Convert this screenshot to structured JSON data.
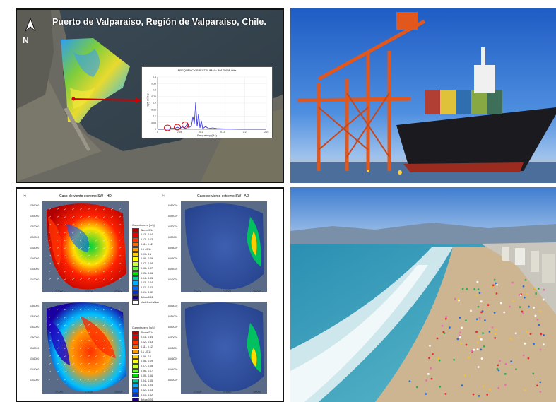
{
  "top_left": {
    "title": "Puerto de Valparaíso, Región de Valparaíso, Chile.",
    "north_label": "N",
    "spectrum": {
      "title": "FREQUENCY SPECTRUM: f = 3917569F 0Hz",
      "xlabel": "Frequency (Hz)",
      "ylabel": "S(f) m²/Hz",
      "yticks": [
        "0.4",
        "0.35",
        "0.3",
        "0.25",
        "0.2",
        "0.15",
        "0.1",
        "0.05",
        "0"
      ],
      "xticks": [
        "0",
        "0.05",
        "0.1",
        "0.15",
        "0.2",
        "0.25"
      ]
    }
  },
  "bottom_left": {
    "maps": [
      {
        "label": "(a)",
        "title": "Caso de viento extremo SW - HD"
      },
      {
        "label": "(b)",
        "title": "Caso de viento extremo SW - AD"
      }
    ],
    "legend_title": "Current speed [m/s]",
    "legend_items": [
      "Above 0.14",
      "0.13 - 0.14",
      "0.12 - 0.13",
      "0.11 - 0.12",
      "0.1 - 0.11",
      "0.09 - 0.1",
      "0.08 - 0.09",
      "0.07 - 0.08",
      "0.06 - 0.07",
      "0.05 - 0.06",
      "0.04 - 0.05",
      "0.03 - 0.04",
      "0.02 - 0.03",
      "0.01 - 0.02",
      "Below 0.01",
      "Undefined Value"
    ],
    "legend_colors": [
      "#b00000",
      "#e00000",
      "#ff3300",
      "#ff6600",
      "#ff9900",
      "#ffcc00",
      "#ffff00",
      "#ccff33",
      "#66ff33",
      "#00dd00",
      "#00cc99",
      "#00aaff",
      "#0066ff",
      "#0033cc",
      "#1a0080",
      "#ffffff"
    ],
    "yticks": [
      "6356000",
      "6354000",
      "6352000",
      "6350000",
      "6348000",
      "6346000",
      "6344000",
      "6342000"
    ],
    "xticks": [
      "270000",
      "275000",
      "280000"
    ]
  }
}
